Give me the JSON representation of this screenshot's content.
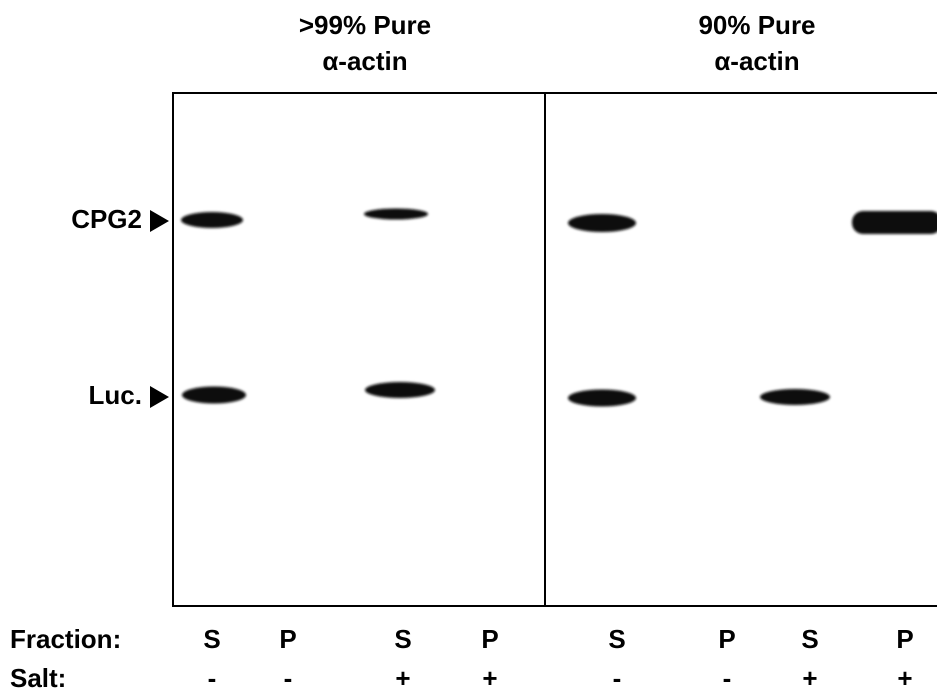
{
  "panels": [
    {
      "title": [
        ">99% Pure",
        "α-actin"
      ]
    },
    {
      "title": [
        "90% Pure",
        "α-actin"
      ]
    }
  ],
  "markers": [
    "CPG2",
    "Luc."
  ],
  "rows": [
    {
      "label": "Fraction:",
      "lanes": [
        "S",
        "P",
        "S",
        "P",
        "S",
        "P",
        "S",
        "P"
      ]
    },
    {
      "label": "Salt:",
      "lanes": [
        "-",
        "-",
        "+",
        "+",
        "-",
        "-",
        "+",
        "+"
      ]
    }
  ]
}
